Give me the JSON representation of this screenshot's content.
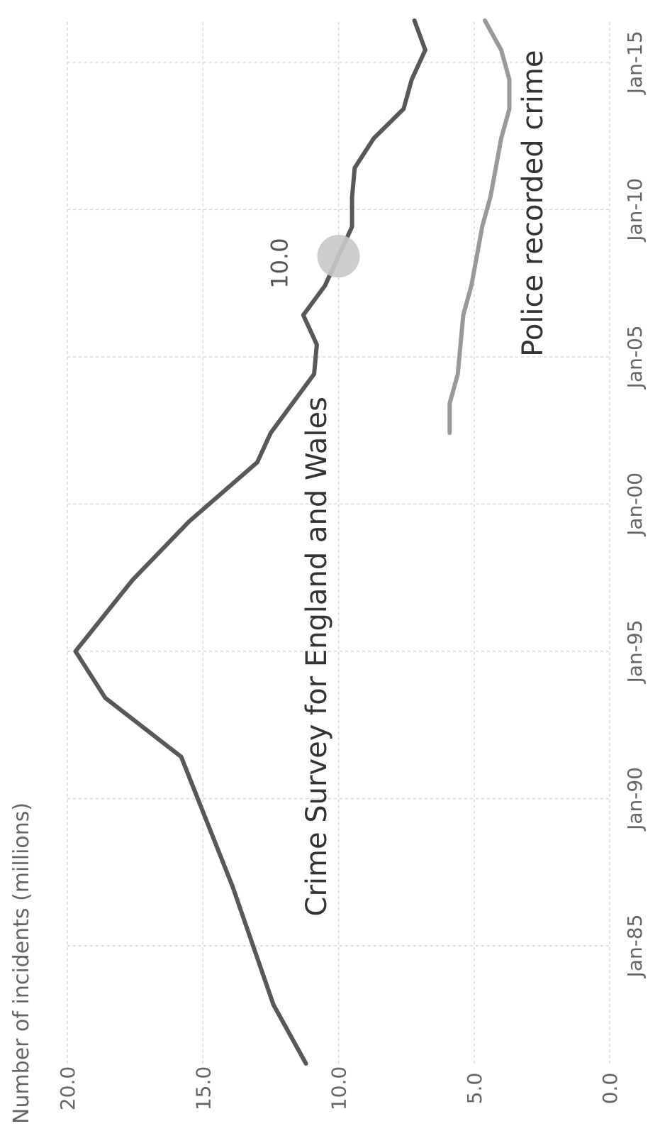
{
  "chart_data": {
    "type": "line",
    "ylabel": "Number of incidents (millions)",
    "xlabel": "",
    "ylim": [
      0,
      20
    ],
    "xlim": [
      "1981-01",
      "2016-06"
    ],
    "yticks": [
      "0.0",
      "5.0",
      "10.0",
      "15.0",
      "20.0"
    ],
    "xtick_values": [
      "1985-01",
      "1990-01",
      "1995-01",
      "2000-01",
      "2005-01",
      "2010-01",
      "2015-01"
    ],
    "xtick_labels": [
      "Jan-85",
      "Jan-90",
      "Jan-95",
      "Jan-00",
      "Jan-05",
      "Jan-10",
      "Jan-15"
    ],
    "grid": true,
    "orientation": "rotated 90° counter-clockwise",
    "annotations": {
      "marker_label": "10.0",
      "marker_point": {
        "x": "2008-06",
        "y": 10.0
      }
    },
    "series": [
      {
        "name": "Crime Survey for England and Wales",
        "color": "#58585b",
        "x": [
          "1981-01",
          "1983-01",
          "1987-01",
          "1991-06",
          "1993-06",
          "1995-01",
          "1997-06",
          "1999-06",
          "2001-06",
          "2002-06",
          "2004-06",
          "2005-06",
          "2006-06",
          "2007-06",
          "2008-06",
          "2009-06",
          "2010-06",
          "2011-06",
          "2012-06",
          "2013-06",
          "2014-06",
          "2015-06",
          "2016-06"
        ],
        "y": [
          11.2,
          12.4,
          13.9,
          15.8,
          18.6,
          19.7,
          17.6,
          15.5,
          13.0,
          12.5,
          10.9,
          10.8,
          11.3,
          10.5,
          10.0,
          9.5,
          9.5,
          9.4,
          8.7,
          7.6,
          7.3,
          6.8,
          7.2
        ]
      },
      {
        "name": "Police recorded crime",
        "color": "#999999",
        "x": [
          "2002-06",
          "2003-06",
          "2004-06",
          "2005-06",
          "2006-06",
          "2007-06",
          "2008-06",
          "2009-06",
          "2010-06",
          "2011-06",
          "2012-06",
          "2013-06",
          "2014-06",
          "2015-06",
          "2016-06"
        ],
        "y": [
          5.9,
          5.9,
          5.6,
          5.5,
          5.4,
          5.1,
          4.9,
          4.7,
          4.4,
          4.2,
          4.0,
          3.7,
          3.7,
          4.0,
          4.6
        ]
      }
    ]
  }
}
